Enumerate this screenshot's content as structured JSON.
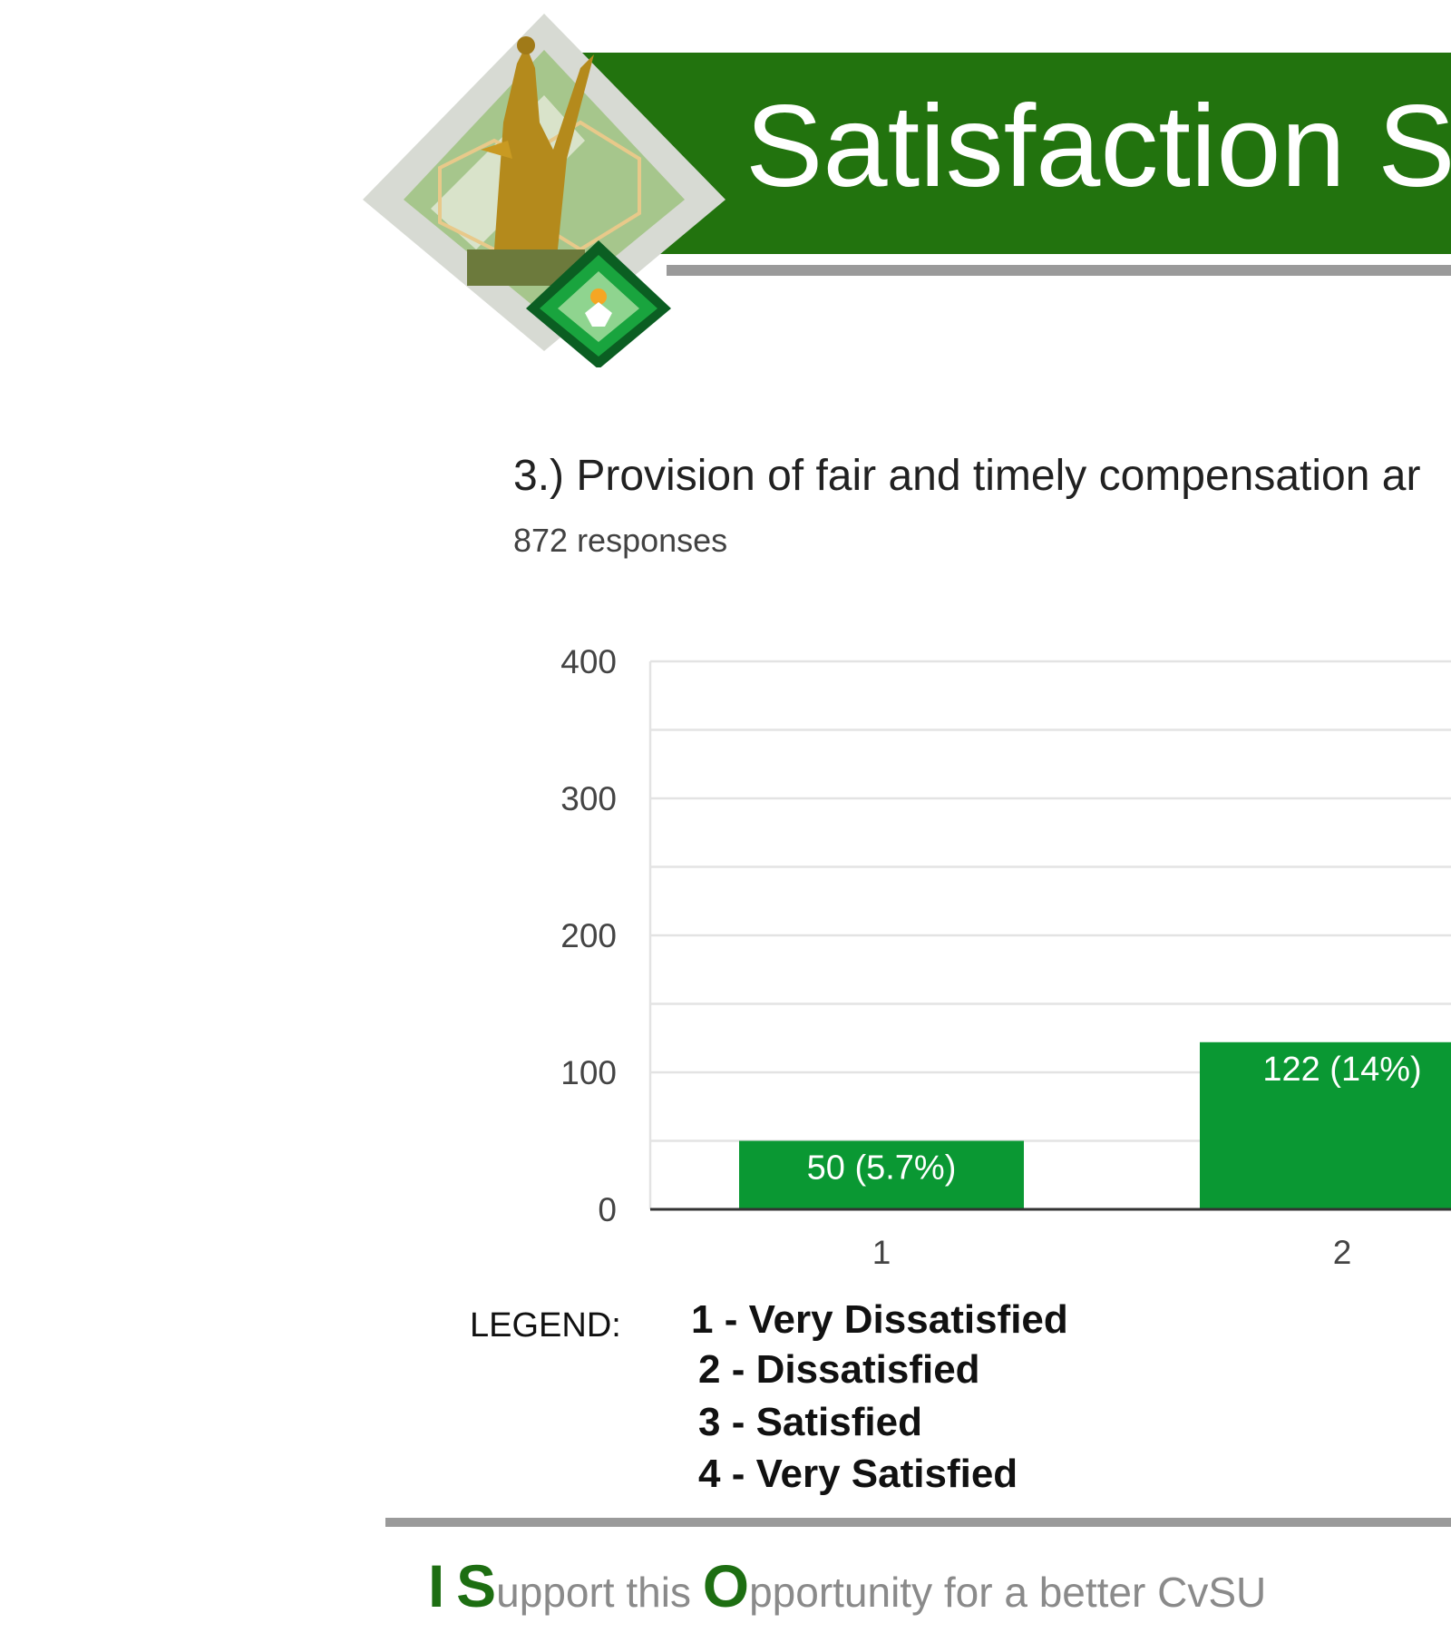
{
  "header": {
    "title": "Satisfaction S"
  },
  "question": {
    "title": "3.) Provision of fair and timely compensation ar",
    "responses": "872 responses"
  },
  "chart_data": {
    "type": "bar",
    "categories": [
      "1",
      "2"
    ],
    "values": [
      50,
      122
    ],
    "data_labels": [
      "50 (5.7%)",
      "122 (14%)"
    ],
    "ylim": [
      0,
      400
    ],
    "yticks": [
      "0",
      "100",
      "200",
      "300",
      "400"
    ],
    "bar_color": "#0a9833",
    "grid": true
  },
  "legend": {
    "label": "LEGEND:",
    "items": [
      "1  -  Very Dissatisfied",
      "2 -  Dissatisfied",
      "3 -  Satisfied",
      "4 - Very Satisfied"
    ]
  },
  "footer": {
    "i": "I",
    "s": "S",
    "upport": "upport this ",
    "o": "O",
    "pportunity": "pportunity for a better CvSU"
  },
  "colors": {
    "banner_green": "#22730e",
    "bar_green": "#0a9833",
    "slogan_green": "#1d6e12"
  }
}
